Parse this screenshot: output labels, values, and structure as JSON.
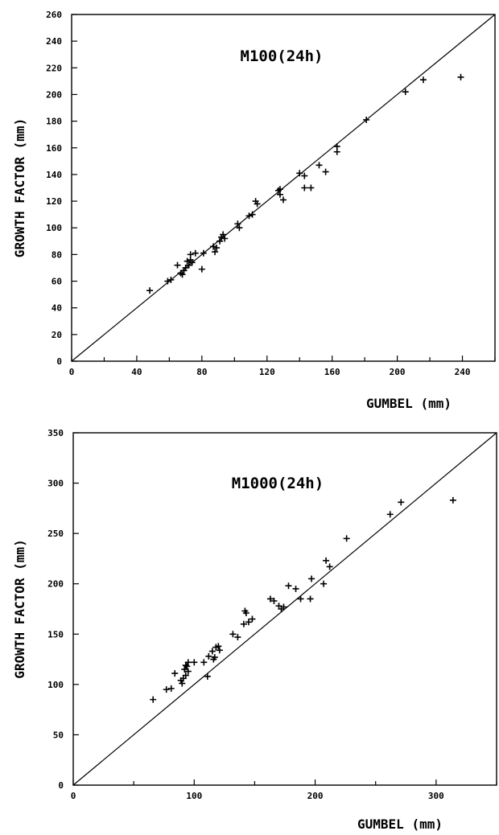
{
  "chart_data": [
    {
      "type": "scatter",
      "title": "M100(24h)",
      "xlabel": "GUMBEL (mm)",
      "ylabel": "GROWTH FACTOR (mm)",
      "xlim": [
        0,
        260
      ],
      "ylim": [
        0,
        260
      ],
      "xticks": [
        0,
        40,
        80,
        120,
        160,
        200,
        240
      ],
      "yticks": [
        0,
        20,
        40,
        60,
        80,
        100,
        120,
        140,
        160,
        180,
        200,
        220,
        240,
        260
      ],
      "reference_line": "1:1",
      "marker": "+",
      "grid": false,
      "points": [
        [
          48,
          53
        ],
        [
          59,
          60
        ],
        [
          61,
          61
        ],
        [
          65,
          72
        ],
        [
          67,
          66
        ],
        [
          68,
          65
        ],
        [
          69,
          68
        ],
        [
          70,
          70
        ],
        [
          71,
          75
        ],
        [
          72,
          72
        ],
        [
          73,
          76
        ],
        [
          73,
          80
        ],
        [
          74,
          74
        ],
        [
          76,
          81
        ],
        [
          80,
          69
        ],
        [
          81,
          81
        ],
        [
          87,
          86
        ],
        [
          88,
          82
        ],
        [
          89,
          85
        ],
        [
          91,
          90
        ],
        [
          92,
          93
        ],
        [
          93,
          95
        ],
        [
          94,
          92
        ],
        [
          102,
          103
        ],
        [
          103,
          100
        ],
        [
          109,
          109
        ],
        [
          111,
          110
        ],
        [
          113,
          120
        ],
        [
          114,
          118
        ],
        [
          127,
          128
        ],
        [
          128,
          129
        ],
        [
          128,
          125
        ],
        [
          130,
          121
        ],
        [
          140,
          141
        ],
        [
          143,
          139
        ],
        [
          143,
          130
        ],
        [
          147,
          130
        ],
        [
          152,
          147
        ],
        [
          156,
          142
        ],
        [
          163,
          161
        ],
        [
          163,
          157
        ],
        [
          181,
          181
        ],
        [
          205,
          202
        ],
        [
          216,
          211
        ],
        [
          239,
          213
        ]
      ]
    },
    {
      "type": "scatter",
      "title": "M1000(24h)",
      "xlabel": "GUMBEL (mm)",
      "ylabel": "GROWTH FACTOR (mm)",
      "xlim": [
        0,
        350
      ],
      "ylim": [
        0,
        350
      ],
      "xticks": [
        0,
        100,
        200,
        300
      ],
      "yticks": [
        0,
        50,
        100,
        150,
        200,
        250,
        300,
        350
      ],
      "reference_line": "1:1",
      "marker": "+",
      "grid": false,
      "points": [
        [
          66,
          85
        ],
        [
          77,
          95
        ],
        [
          81,
          96
        ],
        [
          84,
          111
        ],
        [
          89,
          104
        ],
        [
          90,
          101
        ],
        [
          91,
          106
        ],
        [
          92,
          115
        ],
        [
          93,
          119
        ],
        [
          93,
          109
        ],
        [
          94,
          118
        ],
        [
          95,
          122
        ],
        [
          95,
          113
        ],
        [
          100,
          122
        ],
        [
          108,
          122
        ],
        [
          111,
          108
        ],
        [
          112,
          128
        ],
        [
          115,
          133
        ],
        [
          116,
          125
        ],
        [
          117,
          127
        ],
        [
          118,
          137
        ],
        [
          120,
          138
        ],
        [
          121,
          134
        ],
        [
          132,
          150
        ],
        [
          136,
          147
        ],
        [
          141,
          160
        ],
        [
          142,
          173
        ],
        [
          143,
          171
        ],
        [
          145,
          162
        ],
        [
          148,
          165
        ],
        [
          163,
          185
        ],
        [
          166,
          183
        ],
        [
          170,
          178
        ],
        [
          172,
          175
        ],
        [
          174,
          177
        ],
        [
          178,
          198
        ],
        [
          184,
          195
        ],
        [
          188,
          185
        ],
        [
          196,
          185
        ],
        [
          197,
          205
        ],
        [
          207,
          200
        ],
        [
          209,
          223
        ],
        [
          212,
          217
        ],
        [
          226,
          245
        ],
        [
          262,
          269
        ],
        [
          271,
          281
        ],
        [
          314,
          283
        ]
      ]
    }
  ]
}
